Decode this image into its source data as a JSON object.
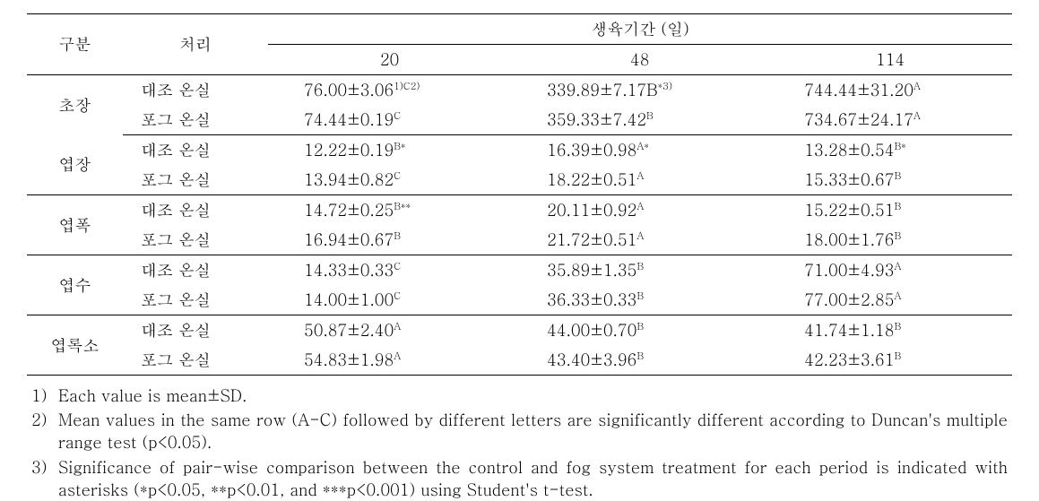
{
  "headers": {
    "category": "구분",
    "treatment": "처리",
    "growth_period": "생육기간 (일)",
    "period_20": "20",
    "period_48": "48",
    "period_114": "114"
  },
  "treatments": {
    "control": "대조 온실",
    "fog": "포그 온실"
  },
  "categories": {
    "plant_height": "초장",
    "leaf_length": "엽장",
    "leaf_width": "엽폭",
    "leaf_number": "엽수",
    "chlorophyll": "엽록소"
  },
  "data": {
    "plant_height": {
      "control": {
        "d20": {
          "val": "76.00±3.06",
          "sup": "1)C2)"
        },
        "d48": {
          "val": "339.89±7.17B",
          "sup": "*3)"
        },
        "d114": {
          "val": "744.44±31.20",
          "sup": "A"
        }
      },
      "fog": {
        "d20": {
          "val": "74.44±0.19",
          "sup": "C"
        },
        "d48": {
          "val": "359.33±7.42",
          "sup": "B"
        },
        "d114": {
          "val": "734.67±24.17",
          "sup": "A"
        }
      }
    },
    "leaf_length": {
      "control": {
        "d20": {
          "val": "12.22±0.19",
          "sup": "B*"
        },
        "d48": {
          "val": "16.39±0.98",
          "sup": "A*"
        },
        "d114": {
          "val": "13.28±0.54",
          "sup": "B*"
        }
      },
      "fog": {
        "d20": {
          "val": "13.94±0.82",
          "sup": "C"
        },
        "d48": {
          "val": "18.22±0.51",
          "sup": "A"
        },
        "d114": {
          "val": "15.33±0.67",
          "sup": "B"
        }
      }
    },
    "leaf_width": {
      "control": {
        "d20": {
          "val": "14.72±0.25",
          "sup": "B**"
        },
        "d48": {
          "val": "20.11±0.92",
          "sup": "A"
        },
        "d114": {
          "val": "15.22±0.51",
          "sup": "B"
        }
      },
      "fog": {
        "d20": {
          "val": "16.94±0.67",
          "sup": "B"
        },
        "d48": {
          "val": "21.72±0.51",
          "sup": "A"
        },
        "d114": {
          "val": "18.00±1.76",
          "sup": "B"
        }
      }
    },
    "leaf_number": {
      "control": {
        "d20": {
          "val": "14.33±0.33",
          "sup": "C"
        },
        "d48": {
          "val": "35.89±1.35",
          "sup": "B"
        },
        "d114": {
          "val": "71.00±4.93",
          "sup": "A"
        }
      },
      "fog": {
        "d20": {
          "val": "14.00±1.00",
          "sup": "C"
        },
        "d48": {
          "val": "36.33±0.33",
          "sup": "B"
        },
        "d114": {
          "val": "77.00±2.85",
          "sup": "A"
        }
      }
    },
    "chlorophyll": {
      "control": {
        "d20": {
          "val": "50.87±2.40",
          "sup": "A"
        },
        "d48": {
          "val": "44.00±0.70",
          "sup": "B"
        },
        "d114": {
          "val": "41.74±1.18",
          "sup": "B"
        }
      },
      "fog": {
        "d20": {
          "val": "54.83±1.98",
          "sup": "A"
        },
        "d48": {
          "val": "43.40±3.96",
          "sup": "B"
        },
        "d114": {
          "val": "42.23±3.61",
          "sup": "B"
        }
      }
    }
  },
  "footnotes": {
    "n1": {
      "num": "1)",
      "text": "Each value is mean±SD."
    },
    "n2": {
      "num": "2)",
      "text": "Mean values in the same row (A-C) followed by different letters are significantly different according to Duncan's multiple range test (p<0.05)."
    },
    "n3": {
      "num": "3)",
      "text": "Significance of pair-wise comparison between the control and fog system treatment for each period is indicated with asterisks (*p<0.05, **p<0.01, and ***p<0.001) using Student's t-test."
    }
  }
}
